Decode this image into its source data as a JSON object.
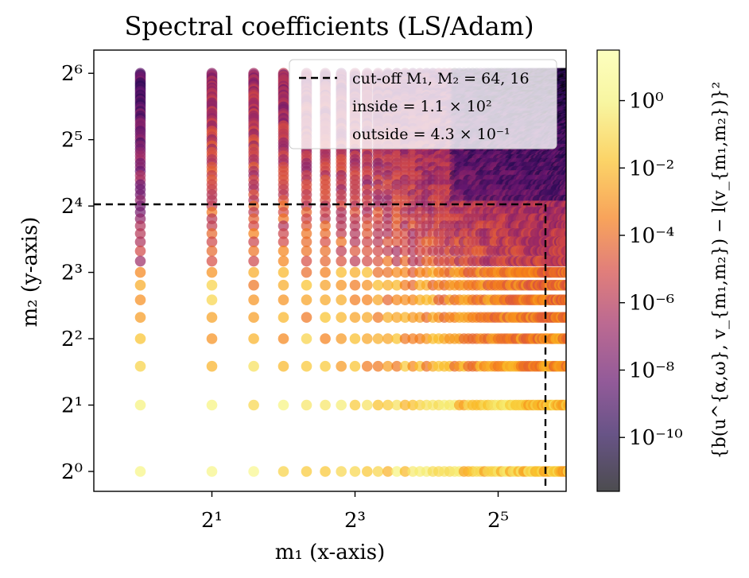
{
  "chart_data": {
    "type": "scatter",
    "title": "Spectral coefficients (LS/Adam)",
    "xlabel": "m₁  (x-axis)",
    "ylabel": "m₂  (y-axis)",
    "x_scale": "log2",
    "y_scale": "log2",
    "xlim_log2": [
      -0.65,
      5.95
    ],
    "ylim_log2": [
      -0.3,
      6.35
    ],
    "x_ticks": [
      {
        "log2": 1,
        "label": "2¹"
      },
      {
        "log2": 3,
        "label": "2³"
      },
      {
        "log2": 5,
        "label": "2⁵"
      }
    ],
    "y_ticks": [
      {
        "log2": 0,
        "label": "2⁰"
      },
      {
        "log2": 1,
        "label": "2¹"
      },
      {
        "log2": 2,
        "label": "2²"
      },
      {
        "log2": 3,
        "label": "2³"
      },
      {
        "log2": 4,
        "label": "2⁴"
      },
      {
        "log2": 5,
        "label": "2⁵"
      },
      {
        "log2": 6,
        "label": "2⁶"
      }
    ],
    "grid_m1": [
      1,
      64
    ],
    "grid_m2": [
      1,
      64
    ],
    "cutoff": {
      "M1": 64,
      "M2": 16
    },
    "colorbar": {
      "label": "{b(u^{α,ω}, v_{m₁,m₂}) − l(v_{m₁,m₂})}²",
      "scale": "log10",
      "range_log10": [
        -11.6,
        1.5
      ],
      "colormap": "inferno",
      "alpha": 0.7,
      "ticks": [
        {
          "log10": 0,
          "label": "10⁰"
        },
        {
          "log10": -2,
          "label": "10⁻²"
        },
        {
          "log10": -4,
          "label": "10⁻⁴"
        },
        {
          "log10": -6,
          "label": "10⁻⁶"
        },
        {
          "log10": -8,
          "label": "10⁻⁸"
        },
        {
          "log10": -10,
          "label": "10⁻¹⁰"
        }
      ]
    },
    "legend": {
      "position": "top-right",
      "entries": [
        "cut-off M₁, M₂ = 64, 16",
        "inside = 1.1 × 10²",
        "outside = 4.3 × 10⁻¹"
      ]
    }
  }
}
